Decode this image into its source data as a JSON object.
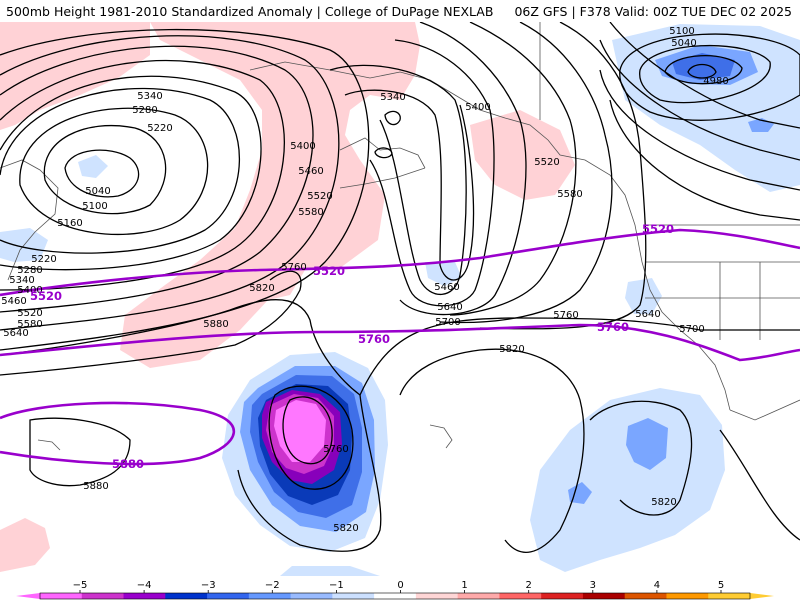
{
  "header": {
    "title": "500mb Height 1981-2010 Standardized Anomaly | College of DuPage NEXLAB",
    "run_info": "06Z GFS | F378 Valid: 00Z TUE DEC 02 2025"
  },
  "legend": {
    "ticks": [
      "−5",
      "−4",
      "−3",
      "−2",
      "−1",
      "0",
      "1",
      "2",
      "3",
      "4",
      "5"
    ],
    "colors": [
      "#ff66ff",
      "#cc33cc",
      "#9900cc",
      "#0033cc",
      "#3366ee",
      "#6699ff",
      "#99bbff",
      "#cce0ff",
      "#ffffff",
      "#ffd6d6",
      "#ffaaaa",
      "#ff6666",
      "#dd2222",
      "#aa0000",
      "#dd5500",
      "#ff9900",
      "#ffcc33"
    ]
  },
  "map": {
    "colors": {
      "neg1": "#cfe3ff",
      "neg2": "#7aa6ff",
      "neg3": "#3f6fe8",
      "neg4": "#0a3ab8",
      "neg5": "#8800bb",
      "neg6": "#cc33cc",
      "neg7": "#ff77ff",
      "pos1": "#ffd2d6",
      "contour": "#000000",
      "thickness": "#9900cc",
      "coast": "#555555"
    },
    "contour_labels": [
      "5100",
      "5040",
      "4980",
      "5340",
      "5280",
      "5220",
      "5040",
      "5100",
      "5160",
      "5220",
      "5280",
      "5340",
      "5400",
      "5460",
      "5520",
      "5580",
      "5640",
      "5340",
      "5400",
      "5460",
      "5520",
      "5580",
      "5400",
      "5520",
      "5580",
      "5760",
      "5820",
      "5880",
      "5460",
      "5640",
      "5700",
      "5760",
      "5640",
      "5700",
      "5820",
      "5880",
      "5760",
      "5820",
      "5820"
    ],
    "thickness_labels": [
      "5520",
      "5520",
      "5520",
      "5760",
      "5760",
      "5880"
    ]
  }
}
